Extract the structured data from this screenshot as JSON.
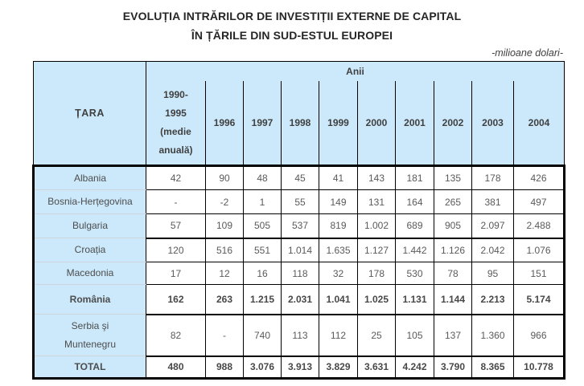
{
  "page": {
    "title_line1": "EVOLUȚIA INTRĂRILOR DE INVESTIȚII EXTERNE DE CAPITAL",
    "title_line2": "ÎN ȚĂRILE DIN SUD-ESTUL EUROPEI",
    "unit_note": "-milioane dolari-"
  },
  "table": {
    "country_header": "ȚARA",
    "years_group_header": "Anii",
    "year_columns": [
      "1990-\n1995\n(medie\nanuală)",
      "1996",
      "1997",
      "1998",
      "1999",
      "2000",
      "2001",
      "2002",
      "2003",
      "2004"
    ],
    "rows": [
      {
        "country": "Albania",
        "bold": false,
        "group_start": false,
        "values": [
          "42",
          "90",
          "48",
          "45",
          "41",
          "143",
          "181",
          "135",
          "178",
          "426"
        ]
      },
      {
        "country": "Bosnia-Herțegovina",
        "bold": false,
        "group_start": false,
        "values": [
          "-",
          "-2",
          "1",
          "55",
          "149",
          "131",
          "164",
          "265",
          "381",
          "497"
        ]
      },
      {
        "country": "Bulgaria",
        "bold": false,
        "group_start": false,
        "values": [
          "57",
          "109",
          "505",
          "537",
          "819",
          "1.002",
          "689",
          "905",
          "2.097",
          "2.488"
        ]
      },
      {
        "country": "Croația",
        "bold": false,
        "group_start": true,
        "values": [
          "120",
          "516",
          "551",
          "1.014",
          "1.635",
          "1.127",
          "1.442",
          "1.126",
          "2.042",
          "1.076"
        ]
      },
      {
        "country": "Macedonia",
        "bold": false,
        "group_start": false,
        "values": [
          "17",
          "12",
          "16",
          "118",
          "32",
          "178",
          "530",
          "78",
          "95",
          "151"
        ]
      },
      {
        "country": "România",
        "bold": true,
        "group_start": false,
        "values": [
          "162",
          "263",
          "1.215",
          "2.031",
          "1.041",
          "1.025",
          "1.131",
          "1.144",
          "2.213",
          "5.174"
        ]
      },
      {
        "country": "Serbia şi\nMuntenegru",
        "bold": false,
        "group_start": true,
        "values": [
          "82",
          "-",
          "740",
          "113",
          "112",
          "25",
          "105",
          "137",
          "1.360",
          "966"
        ]
      },
      {
        "country": "TOTAL",
        "bold": true,
        "group_start": true,
        "values": [
          "480",
          "988",
          "3.076",
          "3.913",
          "3.829",
          "3.631",
          "4.242",
          "3.790",
          "8.365",
          "10.778"
        ]
      }
    ],
    "colors": {
      "header_fill": "#cce9fb",
      "border_color": "#000000"
    }
  }
}
